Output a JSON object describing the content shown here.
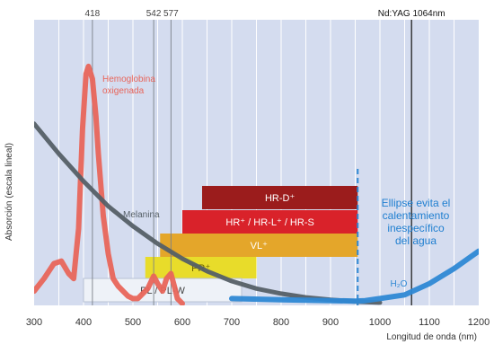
{
  "chart_data": {
    "type": "line",
    "title": "",
    "xlabel": "Longitud de onda (nm)",
    "ylabel": "Absorción (escala lineal)",
    "xlim": [
      300,
      1200
    ],
    "ylim": [
      0,
      1
    ],
    "grid": true,
    "x_ticks": [
      300,
      400,
      500,
      600,
      700,
      800,
      900,
      1000,
      1100,
      1200
    ],
    "top_markers": [
      {
        "wavelength": 418,
        "label": "418"
      },
      {
        "wavelength": 542,
        "label": "542"
      },
      {
        "wavelength": 577,
        "label": "577"
      },
      {
        "wavelength": 1064,
        "label": "Nd:YAG 1064nm"
      }
    ],
    "series": [
      {
        "name": "Hemoglobina oxigenada",
        "color": "#e8655a",
        "label_lines": [
          "Hemoglobina",
          "oxigenada"
        ],
        "x": [
          300,
          320,
          340,
          355,
          370,
          380,
          390,
          398,
          405,
          410,
          418,
          425,
          430,
          440,
          450,
          460,
          470,
          480,
          490,
          500,
          510,
          520,
          530,
          542,
          550,
          560,
          568,
          577,
          585,
          590,
          600
        ],
        "y": [
          0.05,
          0.1,
          0.16,
          0.17,
          0.12,
          0.1,
          0.3,
          0.7,
          0.92,
          0.95,
          0.9,
          0.75,
          0.6,
          0.35,
          0.2,
          0.1,
          0.07,
          0.05,
          0.03,
          0.02,
          0.02,
          0.04,
          0.06,
          0.11,
          0.08,
          0.05,
          0.1,
          0.12,
          0.06,
          0.02,
          0.0
        ]
      },
      {
        "name": "Melanina",
        "color": "#555f66",
        "x": [
          300,
          350,
          400,
          450,
          500,
          550,
          600,
          650,
          700,
          750,
          800,
          850,
          900,
          950,
          1000
        ],
        "y": [
          0.72,
          0.6,
          0.49,
          0.39,
          0.31,
          0.24,
          0.18,
          0.13,
          0.09,
          0.06,
          0.04,
          0.025,
          0.015,
          0.008,
          0.004
        ]
      },
      {
        "name": "H₂O",
        "color": "#2e88d4",
        "x": [
          700,
          800,
          900,
          950,
          970,
          1000,
          1050,
          1100,
          1150,
          1200
        ],
        "y": [
          0.02,
          0.015,
          0.012,
          0.01,
          0.012,
          0.02,
          0.035,
          0.08,
          0.14,
          0.21
        ]
      }
    ],
    "bands": [
      {
        "label": "HR-D⁺",
        "start": 640,
        "end": 955,
        "color": "#9b1c1c"
      },
      {
        "label": "HR⁺ / HR-L⁺ / HR-S",
        "start": 600,
        "end": 955,
        "color": "#d9222a"
      },
      {
        "label": "VL⁺",
        "start": 555,
        "end": 955,
        "color": "#e4a62a"
      },
      {
        "label": "PR⁺",
        "start": 525,
        "end": 750,
        "color": "#e8dc2a"
      },
      {
        "label": "PL / PL-W",
        "start": 400,
        "end": 720,
        "color": "#eef2f8"
      }
    ],
    "cutoff_line": 955,
    "annotation_lines": [
      "Ellipse evita el",
      "calentamiento",
      "inespecífico",
      "del agua"
    ]
  }
}
